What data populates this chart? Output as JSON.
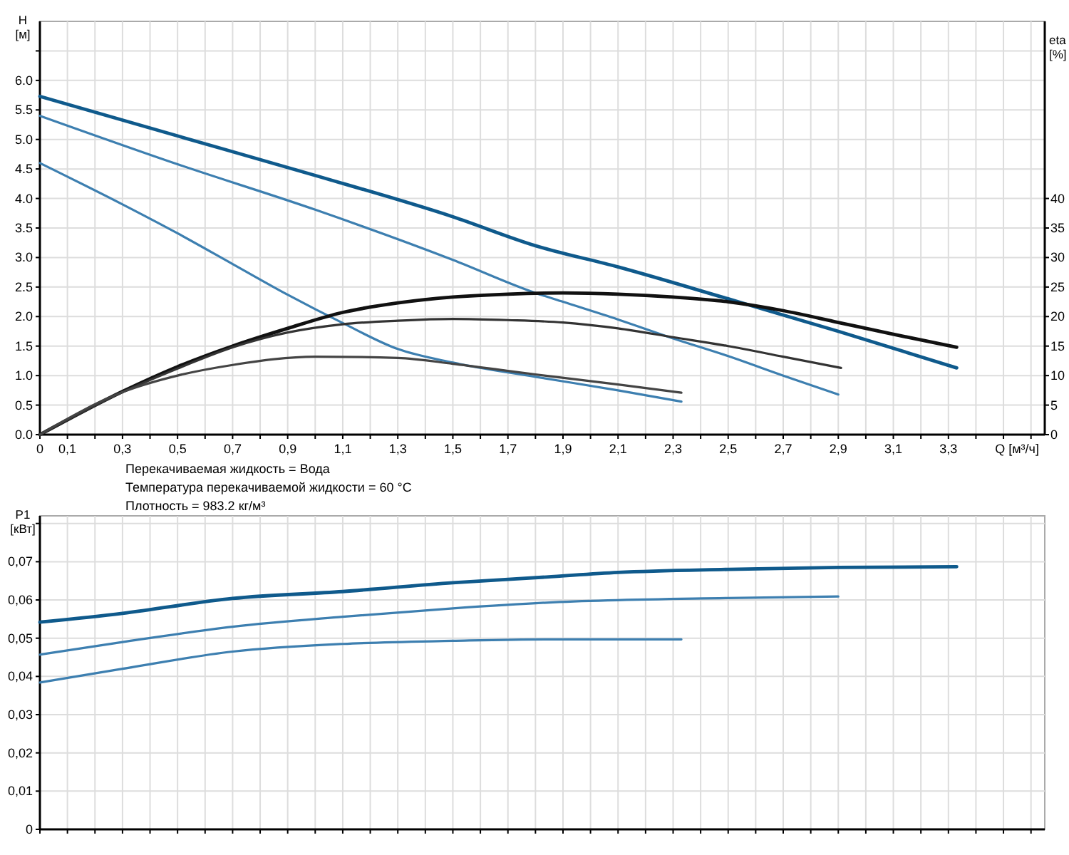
{
  "chart_data": [
    {
      "type": "line",
      "xlabel": "Q [м³/ч]",
      "ylabel": "H [м]",
      "y2label": "eta [%]",
      "grid": true,
      "xlim": [
        0,
        3.65
      ],
      "xticks": [
        {
          "value": 0,
          "label": "0"
        },
        {
          "value": 0.1,
          "label": "0,1"
        },
        {
          "value": 0.2,
          "label": null
        },
        {
          "value": 0.3,
          "label": "0,3"
        },
        {
          "value": 0.4,
          "label": null
        },
        {
          "value": 0.5,
          "label": "0,5"
        },
        {
          "value": 0.6,
          "label": null
        },
        {
          "value": 0.7,
          "label": "0,7"
        },
        {
          "value": 0.8,
          "label": null
        },
        {
          "value": 0.9,
          "label": "0,9"
        },
        {
          "value": 1.0,
          "label": null
        },
        {
          "value": 1.1,
          "label": "1,1"
        },
        {
          "value": 1.2,
          "label": null
        },
        {
          "value": 1.3,
          "label": "1,3"
        },
        {
          "value": 1.4,
          "label": null
        },
        {
          "value": 1.5,
          "label": "1,5"
        },
        {
          "value": 1.6,
          "label": null
        },
        {
          "value": 1.7,
          "label": "1,7"
        },
        {
          "value": 1.8,
          "label": null
        },
        {
          "value": 1.9,
          "label": "1,9"
        },
        {
          "value": 2.0,
          "label": null
        },
        {
          "value": 2.1,
          "label": "2,1"
        },
        {
          "value": 2.2,
          "label": null
        },
        {
          "value": 2.3,
          "label": "2,3"
        },
        {
          "value": 2.4,
          "label": null
        },
        {
          "value": 2.5,
          "label": "2,5"
        },
        {
          "value": 2.6,
          "label": null
        },
        {
          "value": 2.7,
          "label": "2,7"
        },
        {
          "value": 2.8,
          "label": null
        },
        {
          "value": 2.9,
          "label": "2,9"
        },
        {
          "value": 3.0,
          "label": null
        },
        {
          "value": 3.1,
          "label": "3,1"
        },
        {
          "value": 3.2,
          "label": null
        },
        {
          "value": 3.3,
          "label": "3,3"
        },
        {
          "value": 3.4,
          "label": null
        },
        {
          "value": 3.5,
          "label": null
        },
        {
          "value": 3.6,
          "label": null
        }
      ],
      "ylim": [
        0,
        7
      ],
      "yticks": [
        {
          "value": 0,
          "label": "0.0"
        },
        {
          "value": 0.5,
          "label": "0.5"
        },
        {
          "value": 1,
          "label": "1.0"
        },
        {
          "value": 1.5,
          "label": "1.5"
        },
        {
          "value": 2,
          "label": "2.0"
        },
        {
          "value": 2.5,
          "label": "2.5"
        },
        {
          "value": 3,
          "label": "3.0"
        },
        {
          "value": 3.5,
          "label": "3.5"
        },
        {
          "value": 4,
          "label": "4.0"
        },
        {
          "value": 4.5,
          "label": "4.5"
        },
        {
          "value": 5,
          "label": "5.0"
        },
        {
          "value": 5.5,
          "label": "5.5"
        },
        {
          "value": 6,
          "label": "6.0"
        },
        {
          "value": 6.5,
          "label": null
        }
      ],
      "y2lim": [
        0,
        70
      ],
      "y2ticks": [
        0,
        5,
        10,
        15,
        20,
        25,
        30,
        35,
        40
      ],
      "series": [
        {
          "color": "#0f5a8c",
          "x": [
            0,
            0.5,
            1.0,
            1.5,
            1.8,
            2.1,
            2.5,
            2.9,
            3.33
          ],
          "values": [
            5.73,
            5.06,
            4.39,
            3.69,
            3.2,
            2.84,
            2.3,
            1.75,
            1.13
          ]
        },
        {
          "color": "#3d7fb0",
          "x": [
            0,
            0.5,
            1.0,
            1.5,
            1.8,
            1.9,
            2.1,
            2.3,
            2.5,
            2.7,
            2.9
          ],
          "values": [
            5.4,
            4.58,
            3.81,
            2.96,
            2.4,
            2.25,
            1.95,
            1.63,
            1.33,
            1.0,
            0.68
          ]
        },
        {
          "color": "#3d7fb0",
          "x": [
            0,
            0.3,
            0.5,
            0.7,
            0.9,
            1.1,
            1.3,
            1.5,
            1.8,
            2.1,
            2.33
          ],
          "values": [
            4.6,
            3.9,
            3.41,
            2.89,
            2.37,
            1.89,
            1.45,
            1.22,
            0.98,
            0.75,
            0.56
          ]
        },
        {
          "color": "#111111",
          "axis": "y2",
          "x": [
            0,
            0.3,
            0.5,
            0.7,
            0.9,
            1.1,
            1.3,
            1.5,
            1.7,
            1.9,
            2.1,
            2.3,
            2.5,
            2.7,
            2.9,
            3.1,
            3.33
          ],
          "values": [
            0,
            7.3,
            11.5,
            15,
            18,
            20.7,
            22.3,
            23.3,
            23.8,
            24,
            23.8,
            23.3,
            22.5,
            21,
            19,
            17,
            14.8
          ]
        },
        {
          "color": "#333333",
          "axis": "y2",
          "x": [
            0,
            0.3,
            0.5,
            0.7,
            0.9,
            1.1,
            1.3,
            1.5,
            1.7,
            1.9,
            2.1,
            2.3,
            2.5,
            2.7,
            2.91
          ],
          "values": [
            0,
            7.2,
            11.2,
            14.8,
            17.3,
            18.7,
            19.3,
            19.6,
            19.4,
            19,
            18,
            16.5,
            15,
            13.2,
            11.3
          ]
        },
        {
          "color": "#444444",
          "axis": "y2",
          "x": [
            0,
            0.3,
            0.5,
            0.7,
            1.0,
            1.3,
            1.5,
            1.7,
            1.8,
            2.1,
            2.33
          ],
          "values": [
            0,
            7.2,
            10,
            11.8,
            13.2,
            13,
            12,
            10.8,
            10.2,
            8.5,
            7.1
          ]
        }
      ],
      "annotations": [
        "Перекачиваемая жидкость = Вода",
        "Температура перекачиваемой жидкости = 60 °C",
        "Плотность = 983.2 кг/м³"
      ]
    },
    {
      "type": "line",
      "ylabel": "P1 [кВт]",
      "grid": true,
      "tick_labels": "y",
      "xlim": [
        0,
        3.65
      ],
      "xticks": [
        0,
        0.1,
        0.2,
        0.3,
        0.4,
        0.5,
        0.6,
        0.7,
        0.8,
        0.9,
        1.0,
        1.1,
        1.2,
        1.3,
        1.4,
        1.5,
        1.6,
        1.7,
        1.8,
        1.9,
        2.0,
        2.1,
        2.2,
        2.3,
        2.4,
        2.5,
        2.6,
        2.7,
        2.8,
        2.9,
        3.0,
        3.1,
        3.2,
        3.3,
        3.4,
        3.5,
        3.6
      ],
      "ylim": [
        0,
        0.082
      ],
      "yticks": [
        {
          "value": 0,
          "label": "0"
        },
        {
          "value": 0.01,
          "label": "0,01"
        },
        {
          "value": 0.02,
          "label": "0,02"
        },
        {
          "value": 0.03,
          "label": "0,03"
        },
        {
          "value": 0.04,
          "label": "0,04"
        },
        {
          "value": 0.05,
          "label": "0,05"
        },
        {
          "value": 0.06,
          "label": "0,06"
        },
        {
          "value": 0.07,
          "label": "0,07"
        },
        {
          "value": 0.08,
          "label": null
        }
      ],
      "series": [
        {
          "color": "#0f5a8c",
          "x": [
            0,
            0.3,
            0.7,
            1.1,
            1.5,
            1.84,
            2.1,
            2.5,
            2.9,
            3.33
          ],
          "values": [
            0.0542,
            0.0565,
            0.0604,
            0.0622,
            0.0645,
            0.066,
            0.0672,
            0.068,
            0.0685,
            0.0687
          ]
        },
        {
          "color": "#3d7fb0",
          "x": [
            0,
            0.3,
            0.7,
            1.1,
            1.5,
            1.84,
            2.5,
            2.9
          ],
          "values": [
            0.0457,
            0.049,
            0.053,
            0.0556,
            0.0578,
            0.0593,
            0.0605,
            0.0609
          ]
        },
        {
          "color": "#3d7fb0",
          "x": [
            0,
            0.3,
            0.7,
            1.1,
            1.5,
            1.84,
            2.33
          ],
          "values": [
            0.0384,
            0.042,
            0.0465,
            0.0485,
            0.0493,
            0.0497,
            0.0497
          ]
        }
      ]
    }
  ]
}
